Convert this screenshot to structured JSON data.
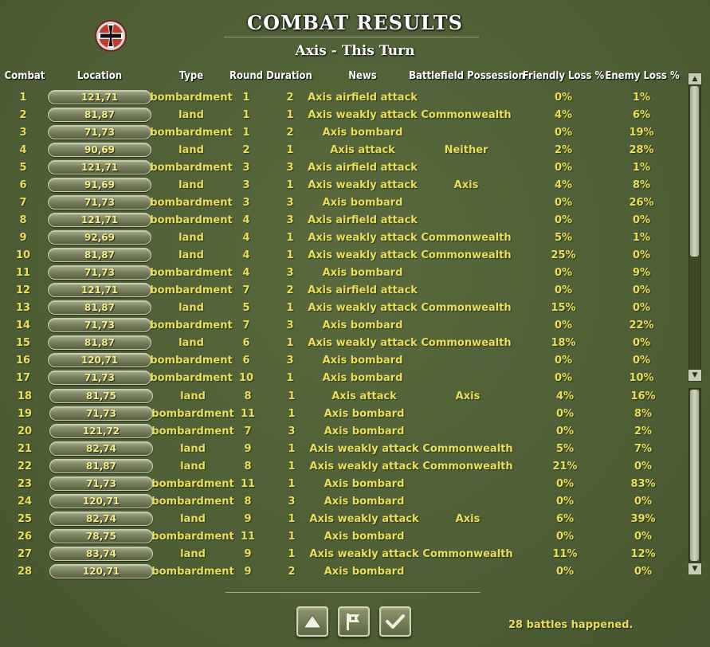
{
  "title": "COMBAT RESULTS",
  "subtitle": "Axis - This Turn",
  "emblem_icon": "iron-cross-icon",
  "columns": {
    "combat": "Combat",
    "location": "Location",
    "type": "Type",
    "round": "Round",
    "duration": "Duration",
    "news": "News",
    "possession": "Battlefield Possession",
    "friendly_loss": "Friendly Loss %",
    "enemy_loss": "Enemy Loss %"
  },
  "rows": [
    {
      "combat": "1",
      "location": "121,71",
      "type": "bombardment",
      "round": "1",
      "duration": "2",
      "news": "Axis airfield attack",
      "possession": "",
      "friendly": "0%",
      "enemy": "1%"
    },
    {
      "combat": "2",
      "location": "81,87",
      "type": "land",
      "round": "1",
      "duration": "1",
      "news": "Axis weakly attack",
      "possession": "Commonwealth",
      "friendly": "4%",
      "enemy": "6%"
    },
    {
      "combat": "3",
      "location": "71,73",
      "type": "bombardment",
      "round": "1",
      "duration": "2",
      "news": "Axis bombard",
      "possession": "",
      "friendly": "0%",
      "enemy": "19%"
    },
    {
      "combat": "4",
      "location": "90,69",
      "type": "land",
      "round": "2",
      "duration": "1",
      "news": "Axis attack",
      "possession": "Neither",
      "friendly": "2%",
      "enemy": "28%"
    },
    {
      "combat": "5",
      "location": "121,71",
      "type": "bombardment",
      "round": "3",
      "duration": "3",
      "news": "Axis airfield attack",
      "possession": "",
      "friendly": "0%",
      "enemy": "1%"
    },
    {
      "combat": "6",
      "location": "91,69",
      "type": "land",
      "round": "3",
      "duration": "1",
      "news": "Axis weakly attack",
      "possession": "Axis",
      "friendly": "4%",
      "enemy": "8%"
    },
    {
      "combat": "7",
      "location": "71,73",
      "type": "bombardment",
      "round": "3",
      "duration": "3",
      "news": "Axis bombard",
      "possession": "",
      "friendly": "0%",
      "enemy": "26%"
    },
    {
      "combat": "8",
      "location": "121,71",
      "type": "bombardment",
      "round": "4",
      "duration": "3",
      "news": "Axis airfield attack",
      "possession": "",
      "friendly": "0%",
      "enemy": "0%"
    },
    {
      "combat": "9",
      "location": "92,69",
      "type": "land",
      "round": "4",
      "duration": "1",
      "news": "Axis weakly attack",
      "possession": "Commonwealth",
      "friendly": "5%",
      "enemy": "1%"
    },
    {
      "combat": "10",
      "location": "81,87",
      "type": "land",
      "round": "4",
      "duration": "1",
      "news": "Axis weakly attack",
      "possession": "Commonwealth",
      "friendly": "25%",
      "enemy": "0%"
    },
    {
      "combat": "11",
      "location": "71,73",
      "type": "bombardment",
      "round": "4",
      "duration": "3",
      "news": "Axis bombard",
      "possession": "",
      "friendly": "0%",
      "enemy": "9%"
    },
    {
      "combat": "12",
      "location": "121,71",
      "type": "bombardment",
      "round": "7",
      "duration": "2",
      "news": "Axis airfield attack",
      "possession": "",
      "friendly": "0%",
      "enemy": "0%"
    },
    {
      "combat": "13",
      "location": "81,87",
      "type": "land",
      "round": "5",
      "duration": "1",
      "news": "Axis weakly attack",
      "possession": "Commonwealth",
      "friendly": "15%",
      "enemy": "0%"
    },
    {
      "combat": "14",
      "location": "71,73",
      "type": "bombardment",
      "round": "7",
      "duration": "3",
      "news": "Axis bombard",
      "possession": "",
      "friendly": "0%",
      "enemy": "22%"
    },
    {
      "combat": "15",
      "location": "81,87",
      "type": "land",
      "round": "6",
      "duration": "1",
      "news": "Axis weakly attack",
      "possession": "Commonwealth",
      "friendly": "18%",
      "enemy": "0%"
    },
    {
      "combat": "16",
      "location": "120,71",
      "type": "bombardment",
      "round": "6",
      "duration": "3",
      "news": "Axis bombard",
      "possession": "",
      "friendly": "0%",
      "enemy": "0%"
    },
    {
      "combat": "17",
      "location": "71,73",
      "type": "bombardment",
      "round": "10",
      "duration": "1",
      "news": "Axis bombard",
      "possession": "",
      "friendly": "0%",
      "enemy": "10%"
    },
    {
      "combat": "18",
      "location": "81,75",
      "type": "land",
      "round": "8",
      "duration": "1",
      "news": "Axis attack",
      "possession": "Axis",
      "friendly": "4%",
      "enemy": "16%"
    },
    {
      "combat": "19",
      "location": "71,73",
      "type": "bombardment",
      "round": "11",
      "duration": "1",
      "news": "Axis bombard",
      "possession": "",
      "friendly": "0%",
      "enemy": "8%"
    },
    {
      "combat": "20",
      "location": "121,72",
      "type": "bombardment",
      "round": "7",
      "duration": "3",
      "news": "Axis bombard",
      "possession": "",
      "friendly": "0%",
      "enemy": "2%"
    },
    {
      "combat": "21",
      "location": "82,74",
      "type": "land",
      "round": "9",
      "duration": "1",
      "news": "Axis weakly attack",
      "possession": "Commonwealth",
      "friendly": "5%",
      "enemy": "7%"
    },
    {
      "combat": "22",
      "location": "81,87",
      "type": "land",
      "round": "8",
      "duration": "1",
      "news": "Axis weakly attack",
      "possession": "Commonwealth",
      "friendly": "21%",
      "enemy": "0%"
    },
    {
      "combat": "23",
      "location": "71,73",
      "type": "bombardment",
      "round": "11",
      "duration": "1",
      "news": "Axis bombard",
      "possession": "",
      "friendly": "0%",
      "enemy": "83%"
    },
    {
      "combat": "24",
      "location": "120,71",
      "type": "bombardment",
      "round": "8",
      "duration": "3",
      "news": "Axis bombard",
      "possession": "",
      "friendly": "0%",
      "enemy": "0%"
    },
    {
      "combat": "25",
      "location": "82,74",
      "type": "land",
      "round": "9",
      "duration": "1",
      "news": "Axis weakly attack",
      "possession": "Axis",
      "friendly": "6%",
      "enemy": "39%"
    },
    {
      "combat": "26",
      "location": "78,75",
      "type": "bombardment",
      "round": "11",
      "duration": "1",
      "news": "Axis bombard",
      "possession": "",
      "friendly": "0%",
      "enemy": "0%"
    },
    {
      "combat": "27",
      "location": "83,74",
      "type": "land",
      "round": "9",
      "duration": "1",
      "news": "Axis weakly attack",
      "possession": "Commonwealth",
      "friendly": "11%",
      "enemy": "12%"
    },
    {
      "combat": "28",
      "location": "120,71",
      "type": "bombardment",
      "round": "9",
      "duration": "2",
      "news": "Axis bombard",
      "possession": "",
      "friendly": "0%",
      "enemy": "0%"
    }
  ],
  "footer": {
    "status": "28 battles happened.",
    "buttons": [
      {
        "name": "scroll-up-button",
        "icon": "up-triangle-icon"
      },
      {
        "name": "flag-button",
        "icon": "flag-icon"
      },
      {
        "name": "confirm-button",
        "icon": "checkmark-icon"
      }
    ]
  },
  "colors": {
    "text_yellow": "#e9df5a",
    "background": "#4e5e35",
    "header_white": "#ffffff"
  }
}
